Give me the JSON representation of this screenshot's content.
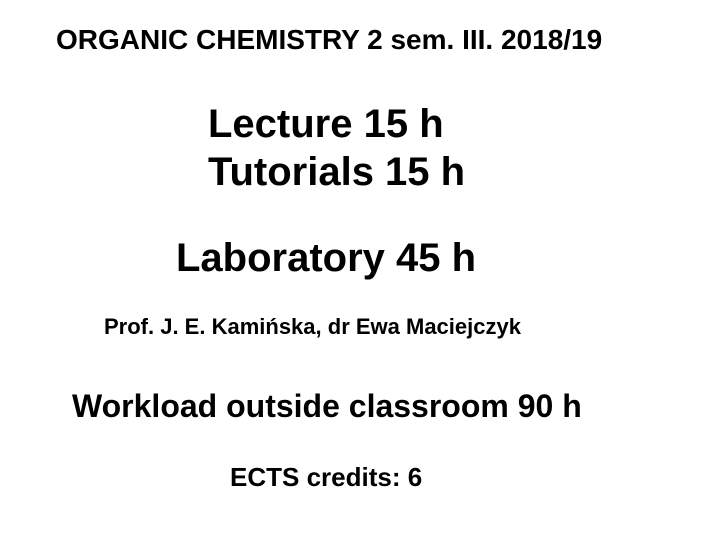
{
  "slide": {
    "background_color": "#ffffff",
    "text_color": "#000000",
    "font_family": "Arial",
    "title": {
      "text": "ORGANIC CHEMISTRY 2  sem. III. 2018/19",
      "fontsize": 28,
      "font_weight": "bold"
    },
    "lecture": {
      "text": "Lecture 15 h",
      "fontsize": 40,
      "font_weight": "bold"
    },
    "tutorials": {
      "text": "Tutorials 15 h",
      "fontsize": 40,
      "font_weight": "bold"
    },
    "laboratory": {
      "text": "Laboratory 45 h",
      "fontsize": 40,
      "font_weight": "bold"
    },
    "instructors": {
      "text": "Prof. J. E. Kamińska, dr Ewa Maciejczyk",
      "fontsize": 22,
      "font_weight": "bold"
    },
    "workload": {
      "text": "Workload outside classroom 90 h",
      "fontsize": 32,
      "font_weight": "bold"
    },
    "ects": {
      "text": "ECTS credits: 6",
      "fontsize": 26,
      "font_weight": "bold"
    }
  }
}
